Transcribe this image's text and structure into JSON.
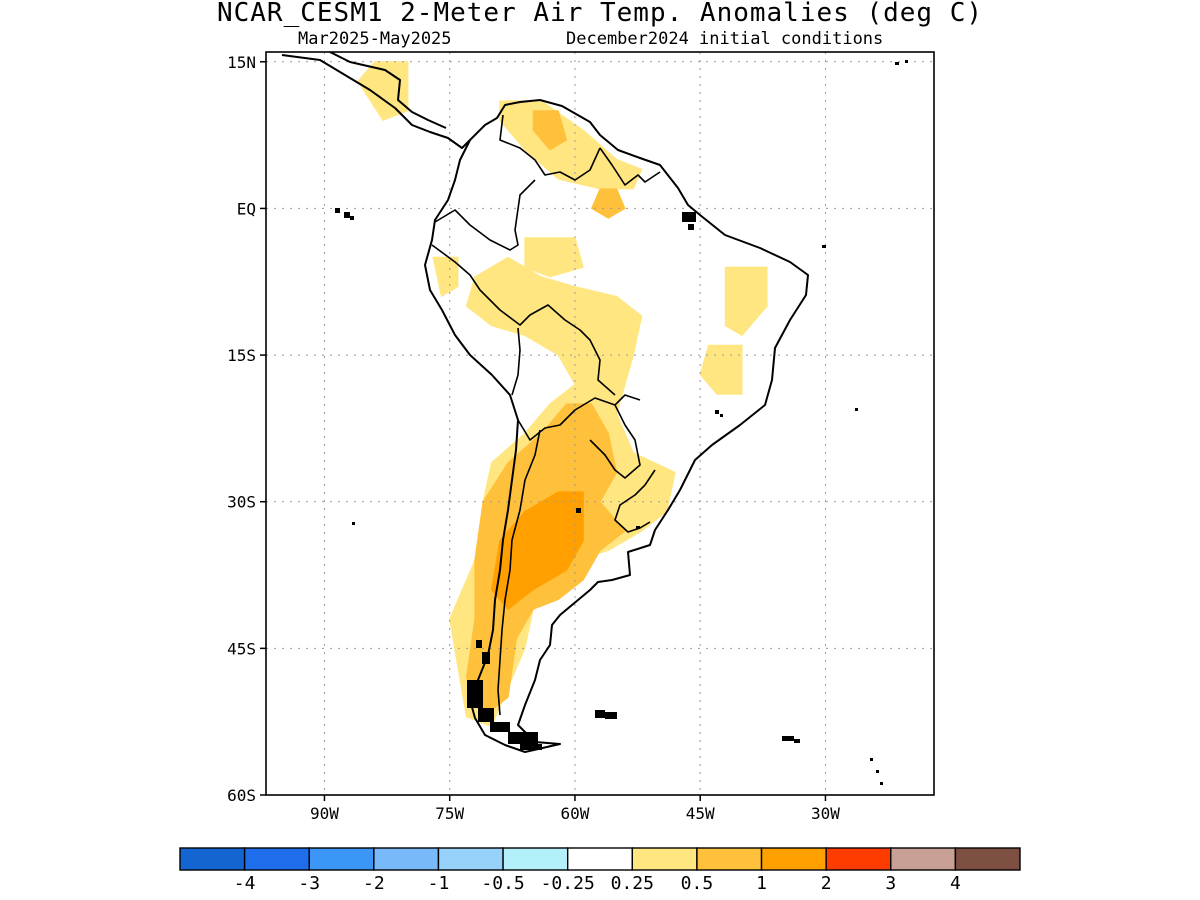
{
  "header": {
    "title": "NCAR_CESM1 2-Meter Air Temp. Anomalies (deg C)",
    "period": "Mar2025-May2025",
    "init": "December2024 initial conditions"
  },
  "map": {
    "lon_range": [
      -97,
      -17
    ],
    "lat_range": [
      -60,
      16
    ],
    "lat_ticks": [
      {
        "value": 15,
        "label": "15N"
      },
      {
        "value": 0,
        "label": "EQ"
      },
      {
        "value": -15,
        "label": "15S"
      },
      {
        "value": -30,
        "label": "30S"
      },
      {
        "value": -45,
        "label": "45S"
      },
      {
        "value": -60,
        "label": "60S"
      }
    ],
    "lon_ticks": [
      {
        "value": -90,
        "label": "90W"
      },
      {
        "value": -75,
        "label": "75W"
      },
      {
        "value": -60,
        "label": "60W"
      },
      {
        "value": -45,
        "label": "45W"
      },
      {
        "value": -30,
        "label": "30W"
      }
    ],
    "grid": "dotted"
  },
  "anomaly_regions": [
    {
      "name": "central-america",
      "level": "0.25-0.5",
      "color": "#ffe680",
      "pts": [
        [
          -84,
          15
        ],
        [
          -80,
          15
        ],
        [
          -80,
          10
        ],
        [
          -83,
          9
        ],
        [
          -86,
          13
        ]
      ]
    },
    {
      "name": "venezuela",
      "level": "0.25-0.5",
      "color": "#ffe680",
      "pts": [
        [
          -69,
          11
        ],
        [
          -64,
          11
        ],
        [
          -59,
          8
        ],
        [
          -55,
          5
        ],
        [
          -52,
          4
        ],
        [
          -53,
          2
        ],
        [
          -57,
          2
        ],
        [
          -62,
          3
        ],
        [
          -66,
          6
        ],
        [
          -69,
          9
        ]
      ]
    },
    {
      "name": "venezuela-core",
      "level": "0.5-1",
      "color": "#ffc03c",
      "pts": [
        [
          -65,
          10
        ],
        [
          -62,
          10
        ],
        [
          -61,
          7
        ],
        [
          -63,
          6
        ],
        [
          -65,
          8
        ]
      ]
    },
    {
      "name": "guiana-spot",
      "level": "0.5-1",
      "color": "#ffc03c",
      "pts": [
        [
          -57,
          2
        ],
        [
          -55,
          2
        ],
        [
          -54,
          0
        ],
        [
          -56,
          -1
        ],
        [
          -58,
          0
        ]
      ]
    },
    {
      "name": "upper-amazon",
      "level": "0.25-0.5",
      "color": "#ffe680",
      "pts": [
        [
          -66,
          -3
        ],
        [
          -60,
          -3
        ],
        [
          -59,
          -6
        ],
        [
          -63,
          -7
        ],
        [
          -66,
          -6
        ]
      ]
    },
    {
      "name": "northeast-brazil",
      "level": "0.25-0.5",
      "color": "#ffe680",
      "pts": [
        [
          -42,
          -6
        ],
        [
          -37,
          -6
        ],
        [
          -37,
          -10
        ],
        [
          -40,
          -13
        ],
        [
          -42,
          -12
        ]
      ]
    },
    {
      "name": "bahia",
      "level": "0.25-0.5",
      "color": "#ffe680",
      "pts": [
        [
          -44,
          -14
        ],
        [
          -40,
          -14
        ],
        [
          -40,
          -19
        ],
        [
          -43,
          -19
        ],
        [
          -45,
          -17
        ]
      ]
    },
    {
      "name": "andes-north",
      "level": "0.25-0.5",
      "color": "#ffe680",
      "pts": [
        [
          -77,
          -5
        ],
        [
          -74,
          -5
        ],
        [
          -74,
          -8
        ],
        [
          -76,
          -9
        ]
      ]
    },
    {
      "name": "central-band",
      "level": "0.25-0.5",
      "color": "#ffe680",
      "pts": [
        [
          -72,
          -7
        ],
        [
          -68,
          -5
        ],
        [
          -64,
          -7
        ],
        [
          -60,
          -8
        ],
        [
          -55,
          -9
        ],
        [
          -52,
          -11
        ],
        [
          -53,
          -15
        ],
        [
          -55,
          -21
        ],
        [
          -53,
          -25
        ],
        [
          -48,
          -27
        ],
        [
          -49,
          -31
        ],
        [
          -52,
          -33
        ],
        [
          -56,
          -35
        ],
        [
          -60,
          -36
        ],
        [
          -62,
          -39
        ],
        [
          -65,
          -41
        ],
        [
          -66,
          -45
        ],
        [
          -68,
          -49
        ],
        [
          -70,
          -53
        ],
        [
          -73,
          -52
        ],
        [
          -74,
          -47
        ],
        [
          -75,
          -42
        ],
        [
          -72,
          -36
        ],
        [
          -71,
          -30
        ],
        [
          -70,
          -26
        ],
        [
          -66,
          -23
        ],
        [
          -63,
          -20
        ],
        [
          -60,
          -18
        ],
        [
          -62,
          -15
        ],
        [
          -66,
          -13
        ],
        [
          -70,
          -12
        ],
        [
          -73,
          -10
        ]
      ]
    },
    {
      "name": "argentina-core",
      "level": "0.5-1",
      "color": "#ffc03c",
      "pts": [
        [
          -61,
          -20
        ],
        [
          -58,
          -20
        ],
        [
          -56,
          -23
        ],
        [
          -55,
          -27
        ],
        [
          -57,
          -30
        ],
        [
          -54,
          -33
        ],
        [
          -57,
          -35
        ],
        [
          -59,
          -38
        ],
        [
          -62,
          -40
        ],
        [
          -65,
          -41
        ],
        [
          -67,
          -44
        ],
        [
          -68,
          -50
        ],
        [
          -71,
          -52
        ],
        [
          -73,
          -48
        ],
        [
          -72,
          -42
        ],
        [
          -72,
          -36
        ],
        [
          -71,
          -30
        ],
        [
          -68,
          -26
        ],
        [
          -64,
          -23
        ]
      ]
    },
    {
      "name": "pampas-core",
      "level": "1-2",
      "color": "#ffa000",
      "pts": [
        [
          -62,
          -29
        ],
        [
          -59,
          -29
        ],
        [
          -59,
          -34
        ],
        [
          -61,
          -37
        ],
        [
          -65,
          -39
        ],
        [
          -68,
          -41
        ],
        [
          -70,
          -39
        ],
        [
          -69,
          -34
        ],
        [
          -66,
          -31
        ]
      ]
    }
  ],
  "colorbar": {
    "colors": [
      "#1464d2",
      "#1e6eeb",
      "#3c96f5",
      "#78b9fa",
      "#96d2fa",
      "#b4f0fa",
      "#ffffff",
      "#ffe680",
      "#ffc03c",
      "#ffa000",
      "#ff3c00",
      "#c8a096",
      "#7d5041"
    ],
    "labels": [
      "-4",
      "-3",
      "-2",
      "-1",
      "-0.5",
      "-0.25",
      "0.25",
      "0.5",
      "1",
      "2",
      "3",
      "4"
    ]
  }
}
